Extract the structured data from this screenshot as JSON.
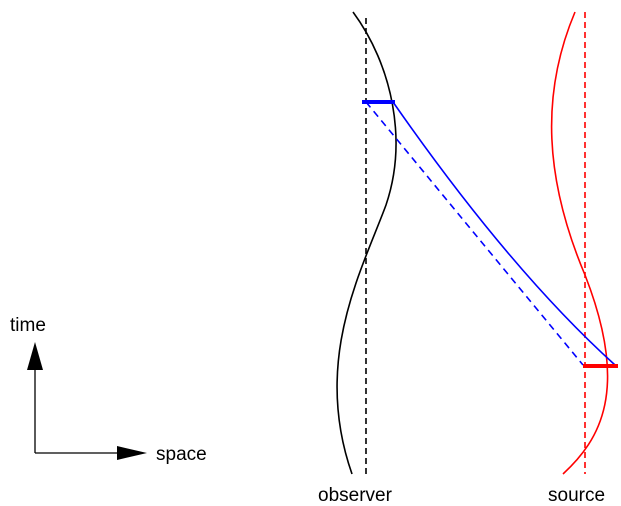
{
  "labels": {
    "time": "time",
    "space": "space",
    "observer": "observer",
    "source": "source"
  },
  "colors": {
    "observer": "#000000",
    "source": "#ff0000",
    "signal": "#0000ff",
    "axes": "#000000",
    "background": "#ffffff"
  }
}
